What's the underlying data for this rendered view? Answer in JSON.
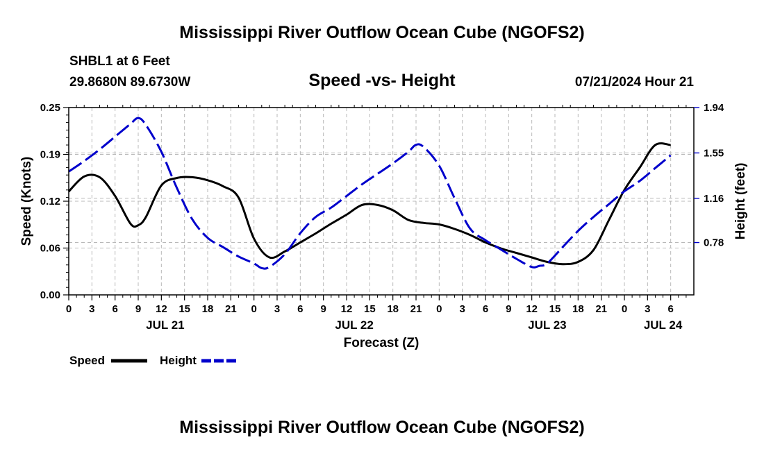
{
  "chart_data": {
    "type": "line",
    "title": "Mississippi River Outflow Ocean Cube (NGOFS2)",
    "footer_title": "Mississippi River Outflow Ocean Cube (NGOFS2)",
    "subtitle": "Speed -vs- Height",
    "station": "SHBL1 at 6 Feet",
    "coordinates": "29.8680N  89.6730W",
    "datetime": "07/21/2024 Hour 21",
    "xlabel": "Forecast (Z)",
    "ylabel_left": "Speed (Knots)",
    "ylabel_right": "Height (feet)",
    "x_range_hours": [
      0,
      81
    ],
    "ylim_left": [
      0,
      0.25
    ],
    "ylim_right": [
      0.33,
      1.94
    ],
    "left_ticks": [
      {
        "v": 0,
        "label": "0.00"
      },
      {
        "v": 0.0625,
        "label": "0.06"
      },
      {
        "v": 0.125,
        "label": "0.12"
      },
      {
        "v": 0.1875,
        "label": "0.19"
      },
      {
        "v": 0.25,
        "label": "0.25"
      }
    ],
    "right_ticks": [
      {
        "v": 0.78,
        "label": "0.78"
      },
      {
        "v": 1.16,
        "label": "1.16"
      },
      {
        "v": 1.55,
        "label": "1.55"
      },
      {
        "v": 1.94,
        "label": "1.94"
      }
    ],
    "x_ticks": [
      {
        "h": 0,
        "label": "0"
      },
      {
        "h": 3,
        "label": "3"
      },
      {
        "h": 6,
        "label": "6"
      },
      {
        "h": 9,
        "label": "9"
      },
      {
        "h": 12,
        "label": "12"
      },
      {
        "h": 15,
        "label": "15"
      },
      {
        "h": 18,
        "label": "18"
      },
      {
        "h": 21,
        "label": "21"
      },
      {
        "h": 24,
        "label": "0"
      },
      {
        "h": 27,
        "label": "3"
      },
      {
        "h": 30,
        "label": "6"
      },
      {
        "h": 33,
        "label": "9"
      },
      {
        "h": 36,
        "label": "12"
      },
      {
        "h": 39,
        "label": "15"
      },
      {
        "h": 42,
        "label": "18"
      },
      {
        "h": 45,
        "label": "21"
      },
      {
        "h": 48,
        "label": "0"
      },
      {
        "h": 51,
        "label": "3"
      },
      {
        "h": 54,
        "label": "6"
      },
      {
        "h": 57,
        "label": "9"
      },
      {
        "h": 60,
        "label": "12"
      },
      {
        "h": 63,
        "label": "15"
      },
      {
        "h": 66,
        "label": "18"
      },
      {
        "h": 69,
        "label": "21"
      },
      {
        "h": 72,
        "label": "0"
      },
      {
        "h": 75,
        "label": "3"
      },
      {
        "h": 78,
        "label": "6"
      }
    ],
    "date_labels": [
      {
        "h": 12.5,
        "label": "JUL 21"
      },
      {
        "h": 37,
        "label": "JUL 22"
      },
      {
        "h": 62,
        "label": "JUL 23"
      },
      {
        "h": 77,
        "label": "JUL 24"
      }
    ],
    "series": [
      {
        "name": "Speed",
        "axis": "left",
        "color": "#000000",
        "dash": "solid",
        "x": [
          0,
          2,
          4,
          6,
          8,
          9,
          10,
          12,
          14,
          16,
          18,
          20,
          22,
          24,
          26,
          28,
          30,
          32,
          34,
          36,
          38,
          40,
          42,
          44,
          46,
          48,
          50,
          52,
          54,
          56,
          58,
          60,
          62,
          64,
          66,
          68,
          70,
          72,
          74,
          76,
          78
        ],
        "values": [
          0.138,
          0.158,
          0.157,
          0.132,
          0.095,
          0.093,
          0.104,
          0.146,
          0.156,
          0.157,
          0.153,
          0.145,
          0.13,
          0.075,
          0.05,
          0.058,
          0.07,
          0.082,
          0.095,
          0.107,
          0.12,
          0.12,
          0.113,
          0.1,
          0.096,
          0.094,
          0.088,
          0.08,
          0.07,
          0.062,
          0.056,
          0.05,
          0.044,
          0.041,
          0.044,
          0.06,
          0.1,
          0.14,
          0.17,
          0.2,
          0.2
        ]
      },
      {
        "name": "Height",
        "axis": "right",
        "color": "#0000cc",
        "dash": "dashed",
        "x": [
          0,
          2,
          4,
          6,
          8,
          9,
          10,
          12,
          14,
          16,
          18,
          20,
          22,
          24,
          25,
          26,
          28,
          30,
          32,
          34,
          36,
          38,
          40,
          42,
          44,
          45,
          46,
          48,
          50,
          52,
          54,
          56,
          58,
          60,
          61,
          62,
          64,
          66,
          68,
          70,
          72,
          74,
          76,
          78
        ],
        "values": [
          1.39,
          1.48,
          1.58,
          1.69,
          1.8,
          1.85,
          1.79,
          1.56,
          1.25,
          0.98,
          0.82,
          0.74,
          0.66,
          0.6,
          0.56,
          0.57,
          0.68,
          0.86,
          1.0,
          1.08,
          1.18,
          1.28,
          1.37,
          1.46,
          1.56,
          1.62,
          1.6,
          1.44,
          1.16,
          0.9,
          0.8,
          0.72,
          0.64,
          0.57,
          0.58,
          0.6,
          0.74,
          0.88,
          1.0,
          1.11,
          1.22,
          1.31,
          1.42,
          1.53
        ]
      }
    ],
    "legend": [
      {
        "label": "Speed",
        "color": "#000000",
        "dash": "solid"
      },
      {
        "label": "Height",
        "color": "#0000cc",
        "dash": "dashed"
      }
    ],
    "grid": true,
    "legend_position": "bottom-left"
  }
}
